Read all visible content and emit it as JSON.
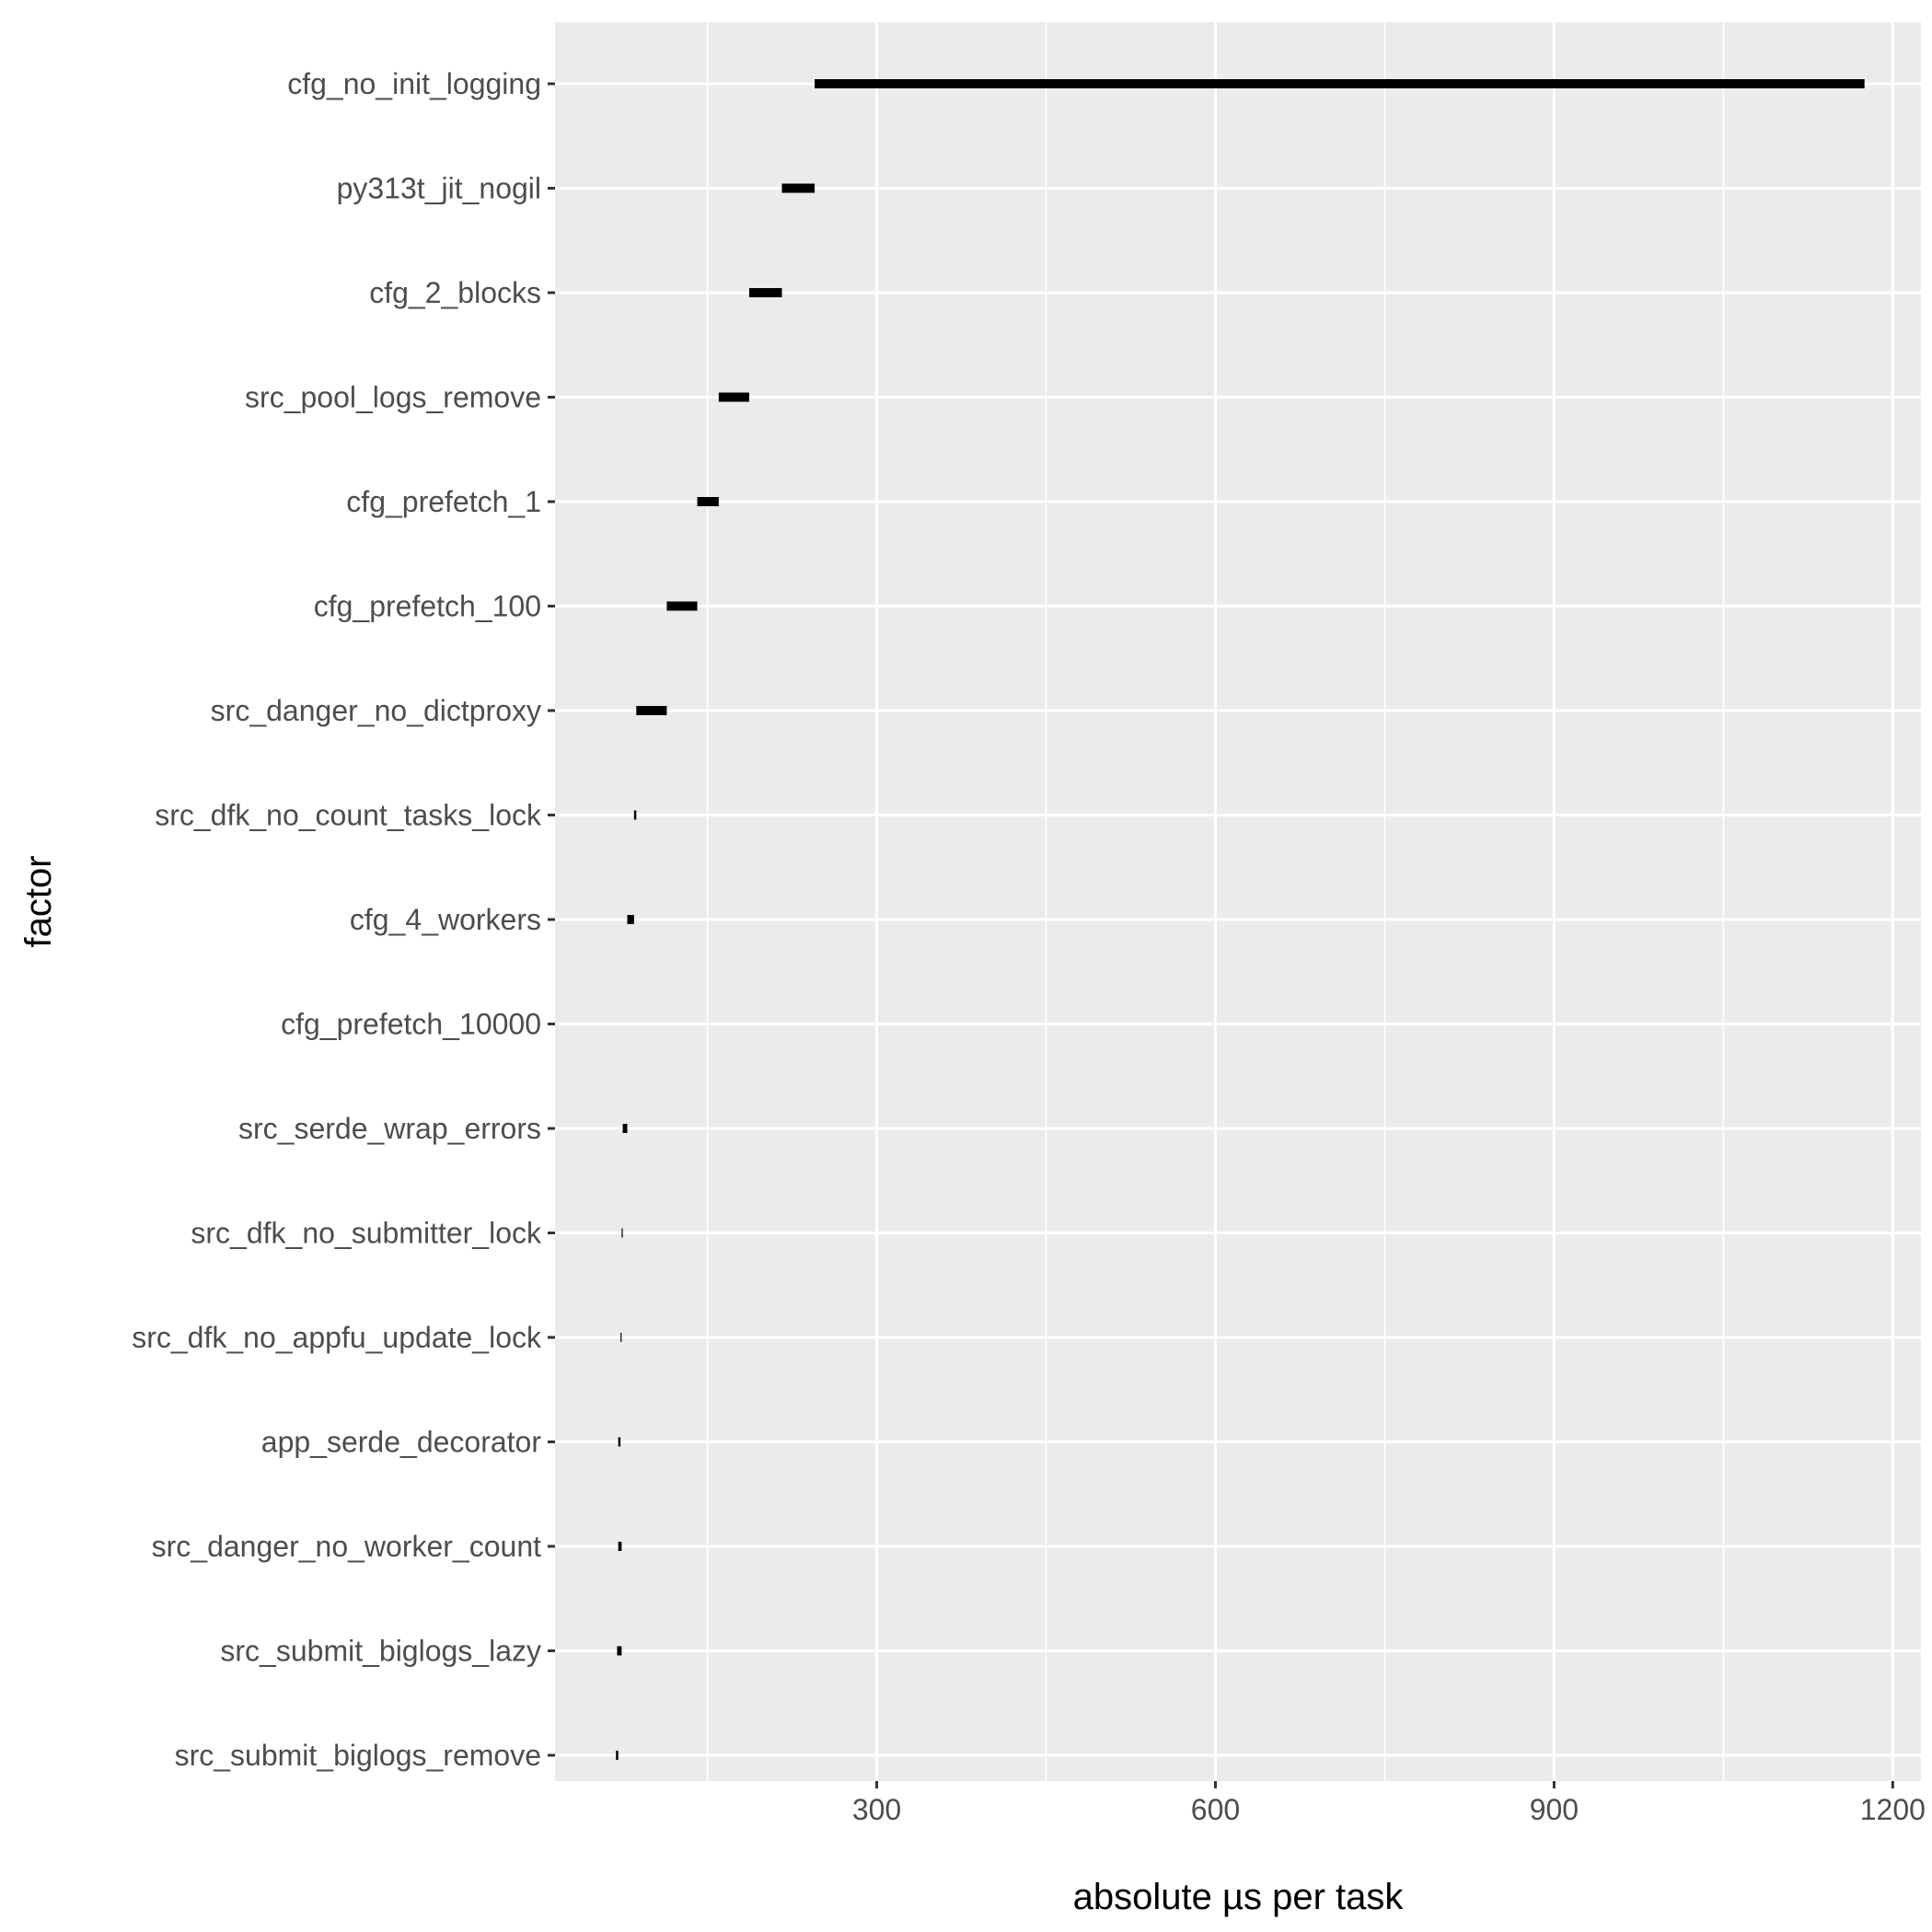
{
  "chart_data": {
    "type": "bar",
    "subtype": "horizontal-range",
    "xlabel": "absolute µs per task",
    "ylabel": "factor",
    "xlim": [
      15,
      1225
    ],
    "x_ticks": [
      300,
      600,
      900,
      1200
    ],
    "x_tick_labels": [
      "300",
      "600",
      "900",
      "1200"
    ],
    "grid": true,
    "legend": "none",
    "colors": {
      "panel": "#ebebeb",
      "grid": "#ffffff",
      "segment": "#000000",
      "tick_label": "#4d4d4d"
    },
    "factors": [
      {
        "name": "cfg_no_init_logging",
        "start": 245,
        "end": 1175,
        "width": 10
      },
      {
        "name": "py313t_jit_nogil",
        "start": 216,
        "end": 245,
        "width": 10
      },
      {
        "name": "cfg_2_blocks",
        "start": 187,
        "end": 216,
        "width": 10
      },
      {
        "name": "src_pool_logs_remove",
        "start": 160,
        "end": 187,
        "width": 10
      },
      {
        "name": "cfg_prefetch_1",
        "start": 141,
        "end": 160,
        "width": 10
      },
      {
        "name": "cfg_prefetch_100",
        "start": 114,
        "end": 141,
        "width": 10
      },
      {
        "name": "src_danger_no_dictproxy",
        "start": 87,
        "end": 114,
        "width": 10
      },
      {
        "name": "src_dfk_no_count_tasks_lock",
        "start": 85,
        "end": 87,
        "width": 10
      },
      {
        "name": "cfg_4_workers",
        "start": 79,
        "end": 85,
        "width": 10
      },
      {
        "name": "cfg_prefetch_10000",
        "start": 79,
        "end": 79,
        "width": 10
      },
      {
        "name": "src_serde_wrap_errors",
        "start": 75,
        "end": 79,
        "width": 10
      },
      {
        "name": "src_dfk_no_submitter_lock",
        "start": 74,
        "end": 75,
        "width": 10
      },
      {
        "name": "src_dfk_no_appfu_update_lock",
        "start": 73,
        "end": 74,
        "width": 10
      },
      {
        "name": "app_serde_decorator",
        "start": 71,
        "end": 73,
        "width": 10
      },
      {
        "name": "src_danger_no_worker_count",
        "start": 71,
        "end": 74,
        "width": 10
      },
      {
        "name": "src_submit_biglogs_lazy",
        "start": 70,
        "end": 74,
        "width": 10
      },
      {
        "name": "src_submit_biglogs_remove",
        "start": 69,
        "end": 71,
        "width": 10
      }
    ]
  }
}
